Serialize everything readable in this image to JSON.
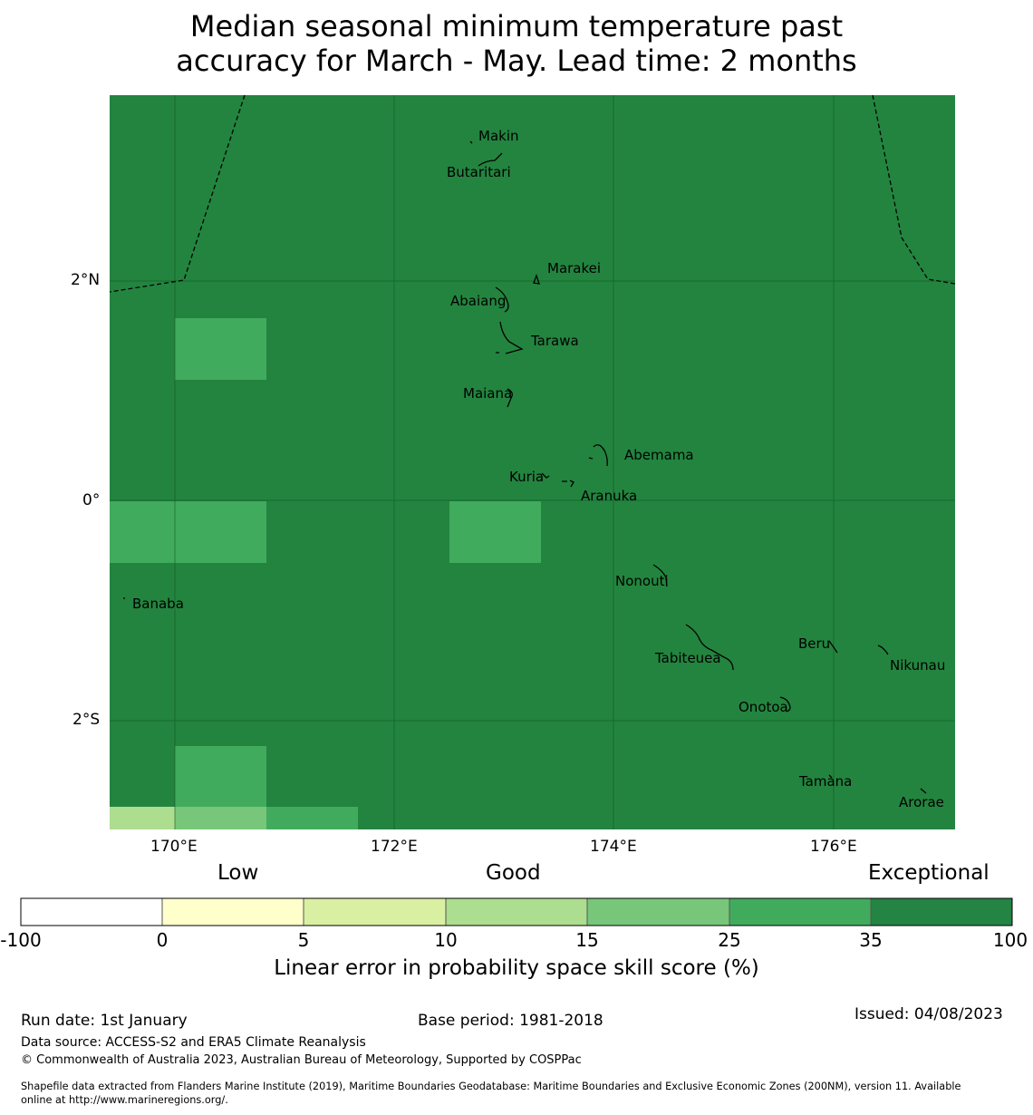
{
  "title": {
    "line1": "Median seasonal minimum temperature past",
    "line2": "accuracy for March - May. Lead time: 2 months"
  },
  "map": {
    "background_color": "#23843f",
    "lon_ticks": [
      "170°E",
      "172°E",
      "174°E",
      "176°E"
    ],
    "lat_ticks": [
      "2°N",
      "0°",
      "2°S"
    ],
    "places": [
      {
        "name": "Makin"
      },
      {
        "name": "Butaritari"
      },
      {
        "name": "Marakei"
      },
      {
        "name": "Abaiang"
      },
      {
        "name": "Tarawa"
      },
      {
        "name": "Maiana"
      },
      {
        "name": "Abemama"
      },
      {
        "name": "Kuria"
      },
      {
        "name": "Aranuka"
      },
      {
        "name": "Nonouti"
      },
      {
        "name": "Banaba"
      },
      {
        "name": "Beru"
      },
      {
        "name": "Tabiteuea"
      },
      {
        "name": "Nikunau"
      },
      {
        "name": "Onotoa"
      },
      {
        "name": "Tamana"
      },
      {
        "name": "Arorae"
      }
    ]
  },
  "legend": {
    "categories": [
      "Low",
      "Good",
      "Exceptional"
    ],
    "ticks": [
      "-100",
      "0",
      "5",
      "10",
      "15",
      "25",
      "35",
      "100"
    ],
    "colors": [
      "#ffffff",
      "#ffffcc",
      "#d9f0a3",
      "#addd8e",
      "#78c679",
      "#41ab5d",
      "#238443"
    ],
    "label": "Linear error in probability space skill score (%)"
  },
  "footer": {
    "run_date": "Run date: 1st January",
    "base_period": "Base period: 1981-2018",
    "issued": "Issued: 04/08/2023",
    "data_source": "Data source: ACCESS-S2 and ERA5 Climate Reanalysis",
    "copyright": "© Commonwealth of Australia 2023, Australian Bureau of Meteorology, Supported by COSPPac",
    "shapefile_line1": "Shapefile data extracted from Flanders Marine Institute (2019), Maritime Boundaries Geodatabase: Maritime Boundaries and Exclusive Economic Zones (200NM), version 11. Available",
    "shapefile_line2": "online at http://www.marineregions.org/."
  }
}
